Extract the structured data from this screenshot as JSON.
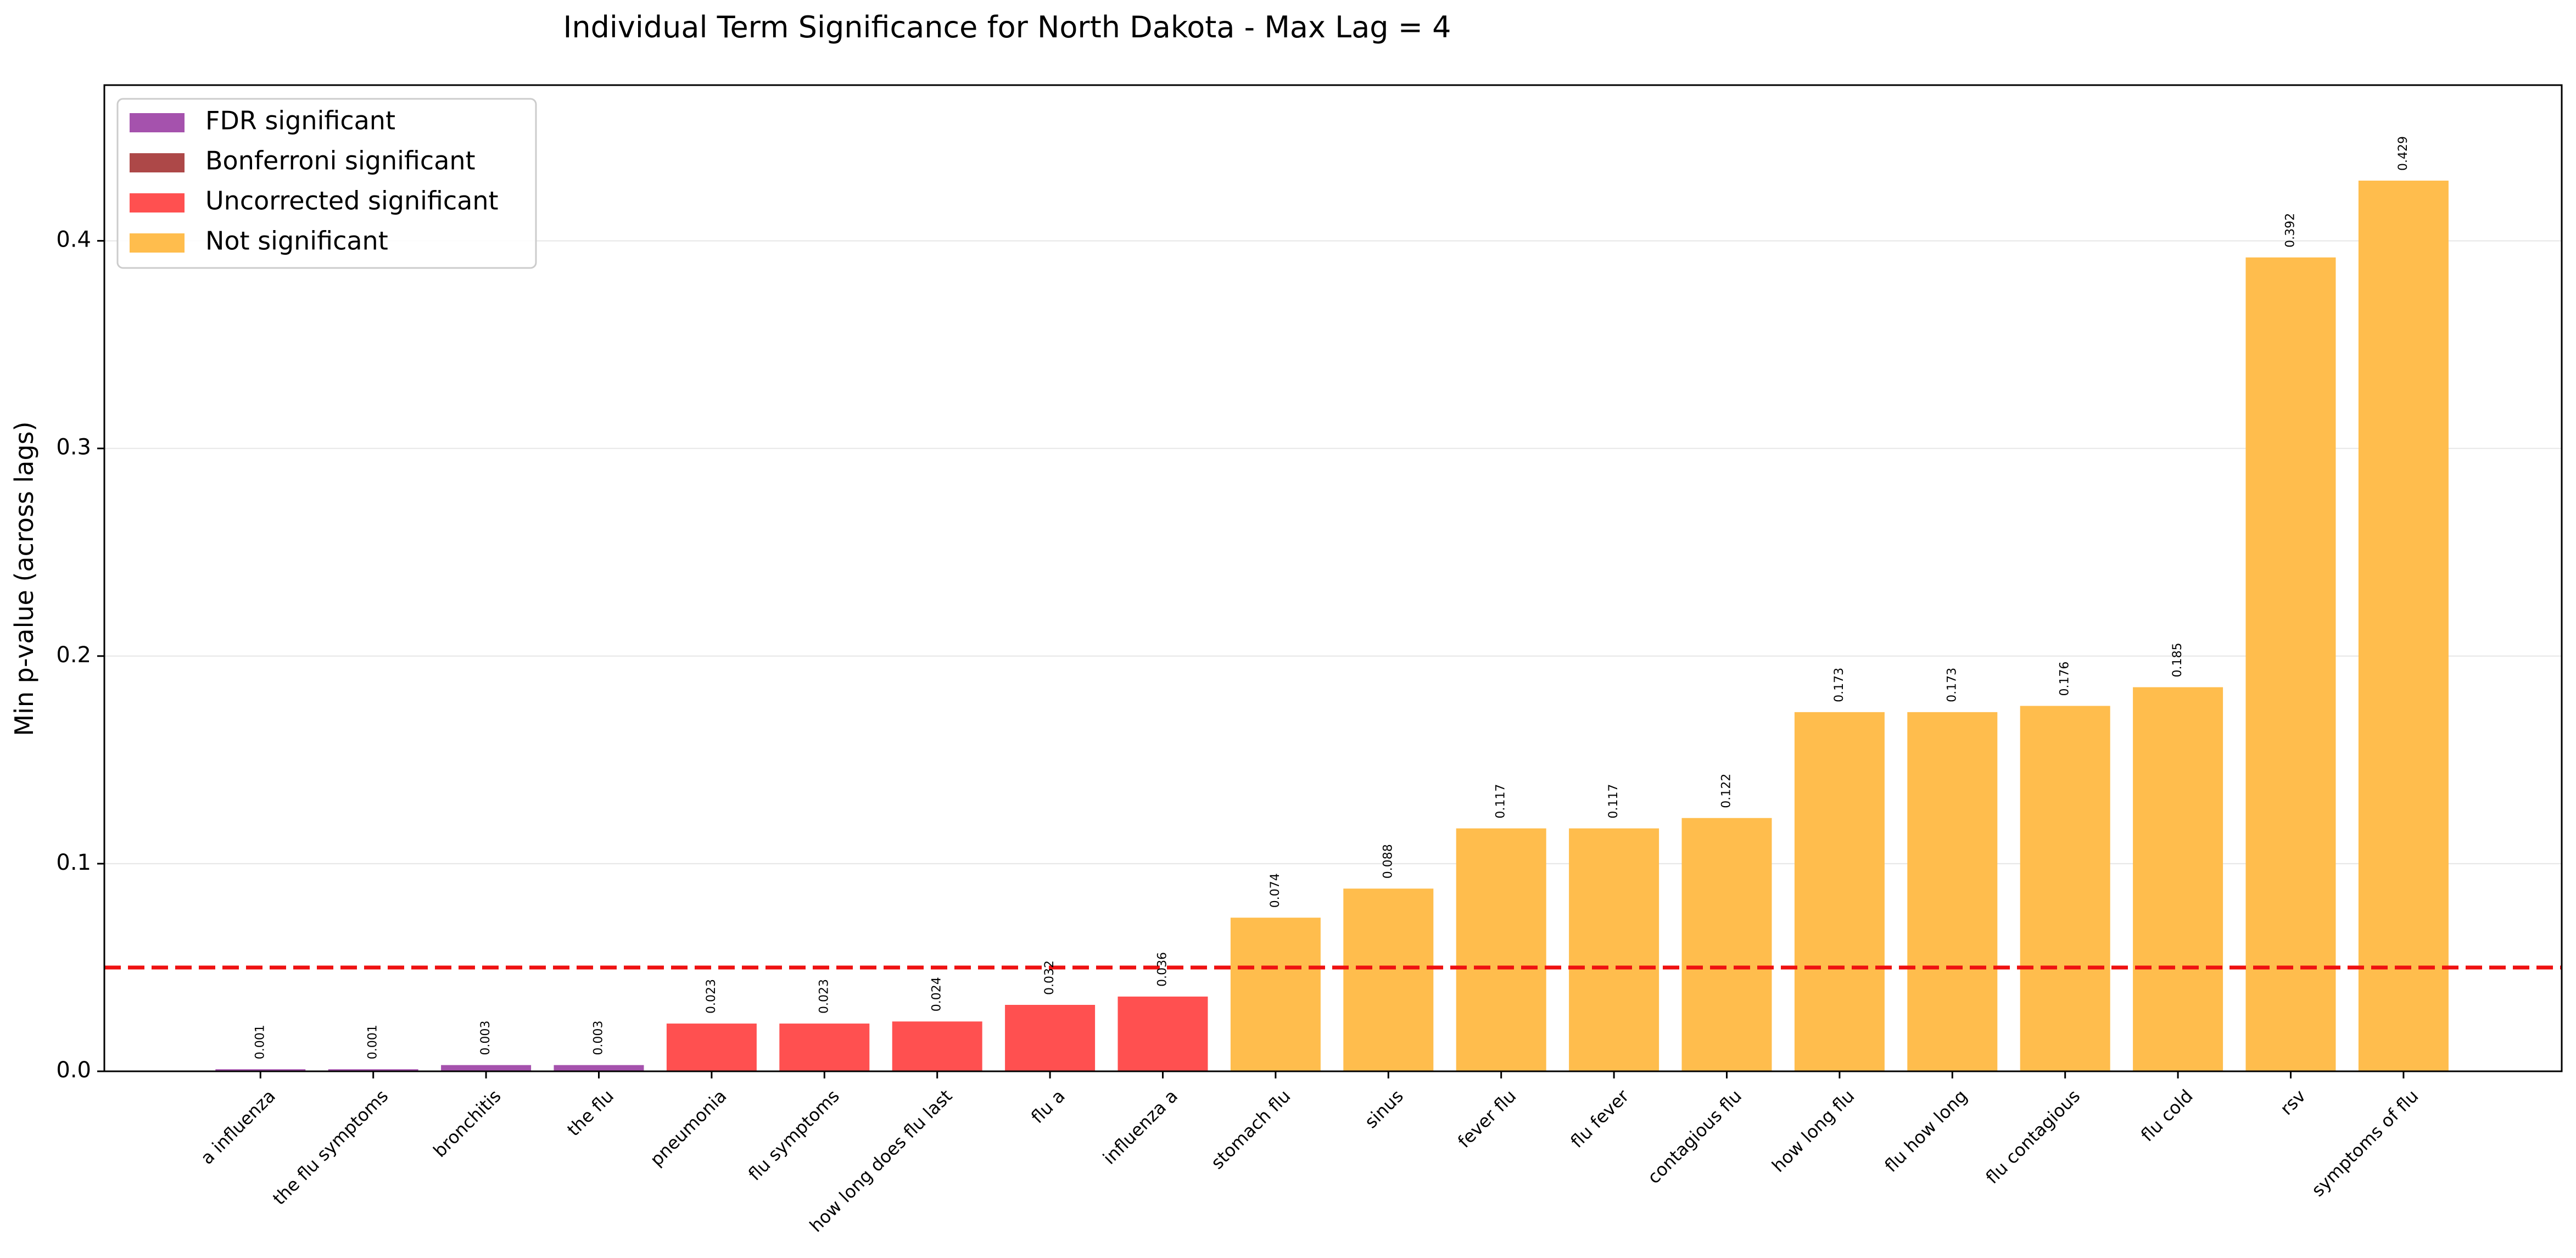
{
  "chart_data": {
    "type": "bar",
    "title": "Individual Term Significance for North Dakota - Max Lag = 4",
    "xlabel": "",
    "ylabel": "Min p-value (across lags)",
    "ylim": [
      0,
      0.475
    ],
    "yticks": [
      0.0,
      0.1,
      0.2,
      0.3,
      0.4
    ],
    "ytick_labels": [
      "0.0",
      "0.1",
      "0.2",
      "0.3",
      "0.4"
    ],
    "grid": "horizontal",
    "legend_position": "top-left",
    "threshold": 0.05,
    "threshold_color": "#ee1111",
    "legend": [
      {
        "key": "fdr",
        "label": "FDR significant",
        "color": "#a552ad"
      },
      {
        "key": "bonferroni",
        "label": "Bonferroni significant",
        "color": "#ad4848"
      },
      {
        "key": "uncorrected",
        "label": "Uncorrected significant",
        "color": "#ff5050"
      },
      {
        "key": "not",
        "label": "Not significant",
        "color": "#ffbd4d"
      }
    ],
    "categories": [
      "a influenza",
      "the flu symptoms",
      "bronchitis",
      "the flu",
      "pneumonia",
      "flu symptoms",
      "how long does flu last",
      "flu a",
      "influenza a",
      "stomach flu",
      "sinus",
      "fever flu",
      "flu fever",
      "contagious flu",
      "how long flu",
      "flu how long",
      "flu contagious",
      "flu cold",
      "rsv",
      "symptoms of flu"
    ],
    "values": [
      0.001,
      0.001,
      0.003,
      0.003,
      0.023,
      0.023,
      0.024,
      0.032,
      0.036,
      0.074,
      0.088,
      0.117,
      0.117,
      0.122,
      0.173,
      0.173,
      0.176,
      0.185,
      0.392,
      0.429
    ],
    "value_labels": [
      "0.001",
      "0.001",
      "0.003",
      "0.003",
      "0.023",
      "0.023",
      "0.024",
      "0.032",
      "0.036",
      "0.074",
      "0.088",
      "0.117",
      "0.117",
      "0.122",
      "0.173",
      "0.173",
      "0.176",
      "0.185",
      "0.392",
      "0.429"
    ],
    "significance": [
      "fdr",
      "fdr",
      "fdr",
      "fdr",
      "uncorrected",
      "uncorrected",
      "uncorrected",
      "uncorrected",
      "uncorrected",
      "not",
      "not",
      "not",
      "not",
      "not",
      "not",
      "not",
      "not",
      "not",
      "not",
      "not"
    ]
  }
}
